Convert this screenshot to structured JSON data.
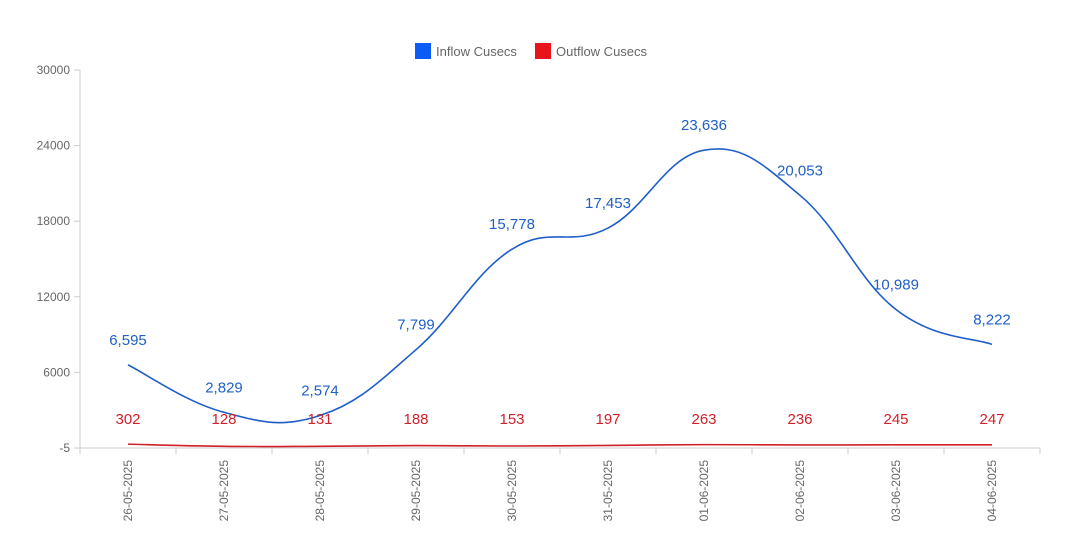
{
  "chart_data": {
    "type": "line",
    "x": [
      "26-05-2025",
      "27-05-2025",
      "28-05-2025",
      "29-05-2025",
      "30-05-2025",
      "31-05-2025",
      "01-06-2025",
      "02-06-2025",
      "03-06-2025",
      "04-06-2025"
    ],
    "series": [
      {
        "name": "Inflow Cusecs",
        "color": "#1f5fc7",
        "values": [
          6595,
          2829,
          2574,
          7799,
          15778,
          17453,
          23636,
          20053,
          10989,
          8222
        ],
        "labels": [
          "6,595",
          "2,829",
          "2,574",
          "7,799",
          "15,778",
          "17,453",
          "23,636",
          "20,053",
          "10,989",
          "8,222"
        ]
      },
      {
        "name": "Outflow Cusecs",
        "color": "#d0202a",
        "values": [
          302,
          128,
          131,
          188,
          153,
          197,
          263,
          236,
          245,
          247
        ],
        "labels": [
          "302",
          "128",
          "131",
          "188",
          "153",
          "197",
          "263",
          "236",
          "245",
          "247"
        ]
      }
    ],
    "y_ticks": [
      "30000",
      "24000",
      "18000",
      "12000",
      "6000",
      "-5"
    ],
    "ylim": [
      -5,
      30000
    ],
    "legend_position": "top-center",
    "legend_swatch_colors": [
      "#0a5cf5",
      "#e8131b"
    ],
    "grid": false
  }
}
